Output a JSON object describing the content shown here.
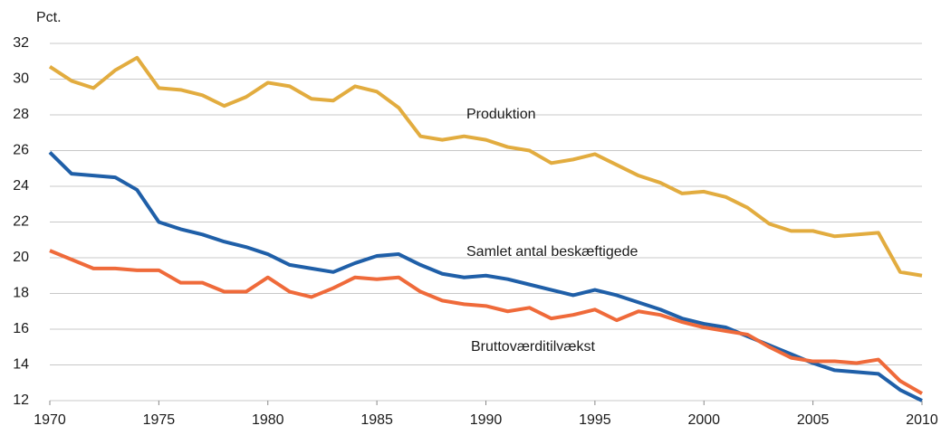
{
  "chart_data": {
    "type": "line",
    "y_label": "Pct.",
    "x": [
      1970,
      1971,
      1972,
      1973,
      1974,
      1975,
      1976,
      1977,
      1978,
      1979,
      1980,
      1981,
      1982,
      1983,
      1984,
      1985,
      1986,
      1987,
      1988,
      1989,
      1990,
      1991,
      1992,
      1993,
      1994,
      1995,
      1996,
      1997,
      1998,
      1999,
      2000,
      2001,
      2002,
      2003,
      2004,
      2005,
      2006,
      2007,
      2008,
      2009,
      2010
    ],
    "series": [
      {
        "name": "Produktion",
        "color": "#e2ac3f",
        "values": [
          30.7,
          29.9,
          29.5,
          30.5,
          31.2,
          29.5,
          29.4,
          29.1,
          28.5,
          29.0,
          29.8,
          29.6,
          28.9,
          28.8,
          29.6,
          29.3,
          28.4,
          26.8,
          26.6,
          26.8,
          26.6,
          26.2,
          26.0,
          25.3,
          25.5,
          25.8,
          25.2,
          24.6,
          24.2,
          23.6,
          23.7,
          23.4,
          22.8,
          21.9,
          21.5,
          21.5,
          21.2,
          21.3,
          21.4,
          19.2,
          19.0
        ]
      },
      {
        "name": "Samlet antal beskæftigede",
        "color": "#1f5fa8",
        "values": [
          25.9,
          24.7,
          24.6,
          24.5,
          23.8,
          22.0,
          21.6,
          21.3,
          20.9,
          20.6,
          20.2,
          19.6,
          19.4,
          19.2,
          19.7,
          20.1,
          20.2,
          19.6,
          19.1,
          18.9,
          19.0,
          18.8,
          18.5,
          18.2,
          17.9,
          18.2,
          17.9,
          17.5,
          17.1,
          16.6,
          16.3,
          16.1,
          15.6,
          15.1,
          14.6,
          14.1,
          13.7,
          13.6,
          13.5,
          12.6,
          12.0
        ]
      },
      {
        "name": "Bruttoværditilvækst",
        "color": "#ef6a3a",
        "values": [
          20.4,
          19.9,
          19.4,
          19.4,
          19.3,
          19.3,
          18.6,
          18.6,
          18.1,
          18.1,
          18.9,
          18.1,
          17.8,
          18.3,
          18.9,
          18.8,
          18.9,
          18.1,
          17.6,
          17.4,
          17.3,
          17.0,
          17.2,
          16.6,
          16.8,
          17.1,
          16.5,
          17.0,
          16.8,
          16.4,
          16.1,
          15.9,
          15.7,
          15.0,
          14.4,
          14.2,
          14.2,
          14.1,
          14.3,
          13.1,
          12.4
        ]
      }
    ],
    "xlim": [
      1970,
      2010
    ],
    "xticks": [
      1970,
      1975,
      1980,
      1985,
      1990,
      1995,
      2000,
      2005,
      2010
    ],
    "ylim": [
      12,
      32
    ],
    "yticks": [
      12,
      14,
      16,
      18,
      20,
      22,
      24,
      26,
      28,
      30,
      32
    ],
    "grid": true
  }
}
